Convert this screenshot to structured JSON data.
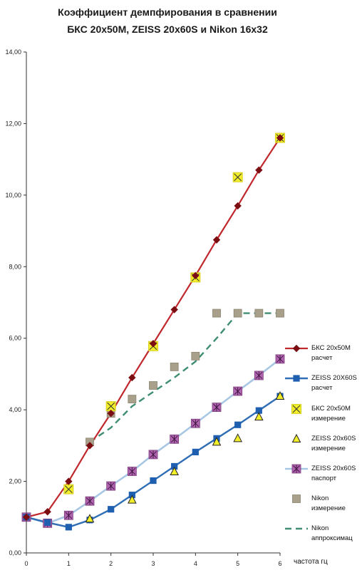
{
  "chart_data": {
    "type": "line",
    "title_lines": [
      "Коэффициент демпфирования в сравнении",
      "БКС 20x50M,  ZEISS 20x60S и Nikon 16x32"
    ],
    "xlabel": "частота гц",
    "ylabel": "",
    "xlim": [
      0,
      6
    ],
    "ylim": [
      0,
      14
    ],
    "x_ticks": [
      "0",
      "1",
      "2",
      "3",
      "4",
      "5",
      "6"
    ],
    "y_ticks": [
      "0,00",
      "2,00",
      "4,00",
      "6,00",
      "8,00",
      "10,00",
      "12,00",
      "14,00"
    ],
    "grid": false,
    "legend_position": "right",
    "series": [
      {
        "name": "БКС 20x50M расчет",
        "style": "line-diamond",
        "color": "#c0282d",
        "marker_color": "#7a0e12",
        "x": [
          0,
          0.5,
          1,
          1.5,
          2,
          2.5,
          3,
          3.5,
          4,
          4.5,
          5,
          5.5,
          6
        ],
        "y": [
          1.0,
          1.15,
          2.0,
          3.0,
          3.9,
          4.9,
          5.85,
          6.8,
          7.75,
          8.75,
          9.7,
          10.7,
          11.6
        ]
      },
      {
        "name": "ZEISS 20X60S расчет",
        "style": "line-square",
        "color": "#2f6eb5",
        "marker_color": "#1f5fb0",
        "x": [
          0,
          0.5,
          1,
          1.5,
          2,
          2.5,
          3,
          3.5,
          4,
          4.5,
          5,
          5.5,
          6
        ],
        "y": [
          1.0,
          0.85,
          0.72,
          0.92,
          1.22,
          1.62,
          2.02,
          2.42,
          2.82,
          3.2,
          3.58,
          3.98,
          4.38
        ]
      },
      {
        "name": "БКС 20x50M измерение",
        "style": "marker-yellow-x",
        "color": "#f2ee2a",
        "marker_color": "#222222",
        "x": [
          1,
          2,
          3,
          4,
          5,
          6
        ],
        "y": [
          1.78,
          4.1,
          5.78,
          7.7,
          10.5,
          11.6
        ]
      },
      {
        "name": "ZEISS 20x60S измерение",
        "style": "marker-triangle",
        "color": "#f2ee2a",
        "marker_color": "#222222",
        "x": [
          1.5,
          2.5,
          3.5,
          4.5,
          5,
          5.5,
          6
        ],
        "y": [
          0.95,
          1.48,
          2.27,
          3.1,
          3.2,
          3.8,
          4.38
        ]
      },
      {
        "name": "ZEISS 20x60S паспорт",
        "style": "line-star-square",
        "color": "#a8c7e3",
        "marker_color": "#8e4f8e",
        "x": [
          0,
          0.5,
          1,
          1.5,
          2,
          2.5,
          3,
          3.5,
          4,
          4.5,
          5,
          5.5,
          6
        ],
        "y": [
          1.0,
          0.83,
          1.05,
          1.45,
          1.87,
          2.28,
          2.75,
          3.18,
          3.62,
          4.07,
          4.52,
          4.96,
          5.42
        ]
      },
      {
        "name": "Nikon измерение",
        "style": "marker-grey-square",
        "color": "#a9a08c",
        "marker_color": "#8a8470",
        "x": [
          1.5,
          2,
          2.5,
          3,
          3.5,
          4,
          4.5,
          5,
          5.5,
          6
        ],
        "y": [
          3.1,
          3.9,
          4.3,
          4.68,
          5.2,
          5.5,
          6.7,
          6.7,
          6.7,
          6.7
        ]
      },
      {
        "name": "Nikon аппроксимац",
        "style": "dashed-line",
        "color": "#3f8e72",
        "marker_color": "#3f8e72",
        "x": [
          1.5,
          2,
          2.5,
          3,
          3.5,
          4,
          4.5,
          5,
          5.5,
          6
        ],
        "y": [
          3.1,
          3.5,
          4.1,
          4.5,
          4.9,
          5.35,
          6.0,
          6.7,
          6.7,
          6.7
        ]
      }
    ]
  },
  "legend": [
    {
      "text": "БКС 20x50M\nрасчет"
    },
    {
      "text": "ZEISS 20X60S\nрасчет"
    },
    {
      "text": "БКС 20x50M\nизмерение"
    },
    {
      "text": "ZEISS 20x60S\nизмерение"
    },
    {
      "text": "ZEISS 20x60S\nпаспорт"
    },
    {
      "text": "Nikon\nизмерение"
    },
    {
      "text": "Nikon\nаппроксимац"
    }
  ]
}
